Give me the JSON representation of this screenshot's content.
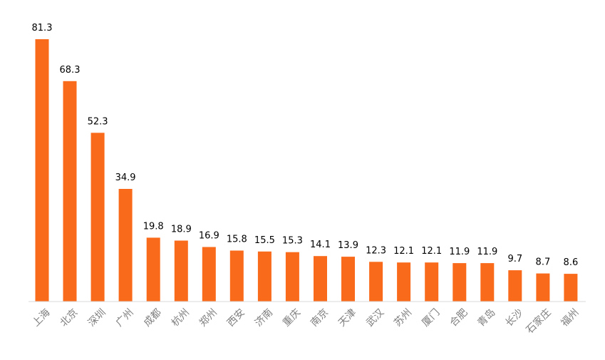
{
  "chart_data": {
    "type": "bar",
    "title": "",
    "xlabel": "",
    "ylabel": "",
    "categories": [
      "上海",
      "北京",
      "深圳",
      "广州",
      "成都",
      "杭州",
      "郑州",
      "西安",
      "济南",
      "重庆",
      "南京",
      "天津",
      "武汉",
      "苏州",
      "厦门",
      "合肥",
      "青岛",
      "长沙",
      "石家庄",
      "福州"
    ],
    "values": [
      81.3,
      68.3,
      52.3,
      34.9,
      19.8,
      18.9,
      16.9,
      15.8,
      15.5,
      15.3,
      14.1,
      13.9,
      12.3,
      12.1,
      12.1,
      11.9,
      11.9,
      9.7,
      8.7,
      8.6
    ],
    "value_labels": [
      "81.3",
      "68.3",
      "52.3",
      "34.9",
      "19.8",
      "18.9",
      "16.9",
      "15.8",
      "15.5",
      "15.3",
      "14.1",
      "13.9",
      "12.3",
      "12.1",
      "12.1",
      "11.9",
      "11.9",
      "9.7",
      "8.7",
      "8.6"
    ],
    "ylim": [
      0,
      81.3
    ],
    "grid": false,
    "legend": "none",
    "colors": {
      "bar": "#F96A1B",
      "axis": "#d9d9d9",
      "category_text": "#7f7f7f",
      "value_text": "#000000"
    }
  }
}
